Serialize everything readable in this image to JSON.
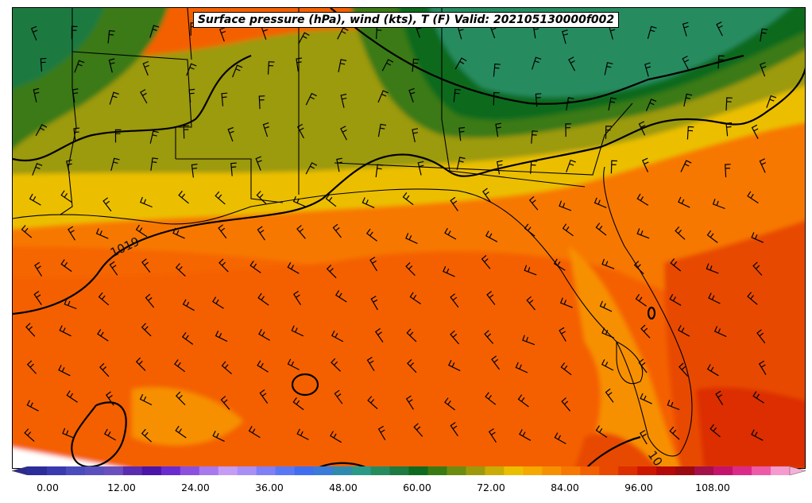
{
  "title": "Surface pressure (hPa), wind (kts), T (F) Valid: 202105130000f002",
  "isobar_labels": [
    "1019",
    "10"
  ],
  "colorbar": {
    "tick_labels": [
      "0.00",
      "12.00",
      "24.00",
      "36.00",
      "48.00",
      "60.00",
      "72.00",
      "84.00",
      "96.00",
      "108.00"
    ],
    "colors": [
      "#2c2c9a",
      "#3a3ab0",
      "#4b4bbe",
      "#5a50bd",
      "#6a4fbf",
      "#5a2cb0",
      "#4a15a8",
      "#6a2bd0",
      "#8b50e0",
      "#a878ee",
      "#c59cf5",
      "#a88ff8",
      "#7f7ff7",
      "#5a78f5",
      "#3f6ef0",
      "#3a7ad8",
      "#2f8ab0",
      "#2a9a88",
      "#268c60",
      "#1d7a40",
      "#0e6a1e",
      "#3a7a12",
      "#6d8c10",
      "#9c9a0c",
      "#c9ac06",
      "#ebbf00",
      "#f5a800",
      "#f79000",
      "#f77800",
      "#f46000",
      "#e84800",
      "#dc2e00",
      "#cc1600",
      "#b50808",
      "#9a0a10",
      "#a4104a",
      "#c5136d",
      "#dc2a8a",
      "#ee5aa8",
      "#f59ace"
    ]
  }
}
